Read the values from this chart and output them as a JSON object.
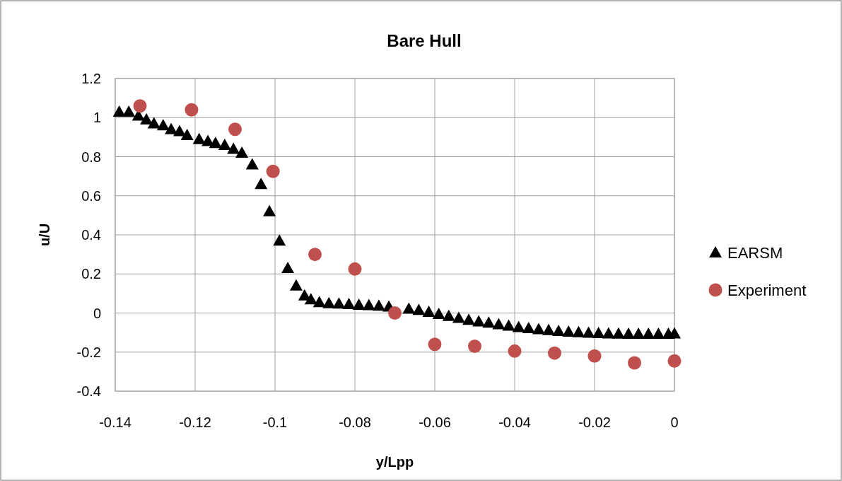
{
  "chart_data": {
    "type": "scatter",
    "title": "Bare Hull",
    "xlabel": "y/Lpp",
    "ylabel": "u/U",
    "xlim": [
      -0.14,
      0
    ],
    "xticks": [
      -0.14,
      -0.12,
      -0.1,
      -0.08,
      -0.06,
      -0.04,
      -0.02,
      0
    ],
    "ylim": [
      -0.4,
      1.2
    ],
    "yticks": [
      -0.4,
      -0.2,
      0,
      0.2,
      0.4,
      0.6,
      0.8,
      1,
      1.2
    ],
    "grid": true,
    "legend": "right",
    "series": [
      {
        "name": "EARSM",
        "color": "#000000",
        "marker": "triangle",
        "x": [
          -0.139,
          -0.1366,
          -0.1342,
          -0.1322,
          -0.1303,
          -0.128,
          -0.126,
          -0.1239,
          -0.122,
          -0.119,
          -0.1168,
          -0.1149,
          -0.1126,
          -0.1104,
          -0.1083,
          -0.1057,
          -0.1035,
          -0.1014,
          -0.0989,
          -0.0968,
          -0.0947,
          -0.0926,
          -0.091,
          -0.0889,
          -0.0865,
          -0.084,
          -0.0815,
          -0.079,
          -0.0765,
          -0.074,
          -0.0715,
          -0.0665,
          -0.064,
          -0.0615,
          -0.059,
          -0.0565,
          -0.054,
          -0.0515,
          -0.049,
          -0.0465,
          -0.044,
          -0.0415,
          -0.039,
          -0.0365,
          -0.034,
          -0.0315,
          -0.029,
          -0.0265,
          -0.024,
          -0.0215,
          -0.019,
          -0.0165,
          -0.014,
          -0.0115,
          -0.009,
          -0.0065,
          -0.004,
          -0.0015,
          0
        ],
        "values": [
          1.03,
          1.03,
          1.01,
          0.99,
          0.97,
          0.96,
          0.94,
          0.93,
          0.91,
          0.89,
          0.88,
          0.87,
          0.86,
          0.84,
          0.82,
          0.76,
          0.66,
          0.52,
          0.37,
          0.23,
          0.14,
          0.09,
          0.07,
          0.055,
          0.05,
          0.048,
          0.045,
          0.042,
          0.04,
          0.037,
          0.033,
          0.022,
          0.015,
          0.005,
          -0.005,
          -0.015,
          -0.025,
          -0.035,
          -0.043,
          -0.05,
          -0.058,
          -0.065,
          -0.072,
          -0.078,
          -0.083,
          -0.088,
          -0.092,
          -0.096,
          -0.099,
          -0.101,
          -0.103,
          -0.105,
          -0.106,
          -0.107,
          -0.107,
          -0.107,
          -0.107,
          -0.107,
          -0.105
        ]
      },
      {
        "name": "Experiment",
        "color": "#c0504d",
        "marker": "circle",
        "x": [
          -0.1338,
          -0.1209,
          -0.11,
          -0.1005,
          -0.09,
          -0.08,
          -0.07,
          -0.06,
          -0.05,
          -0.04,
          -0.03,
          -0.02,
          -0.01,
          0
        ],
        "values": [
          1.06,
          1.04,
          0.94,
          0.725,
          0.3,
          0.225,
          0,
          -0.16,
          -0.17,
          -0.195,
          -0.205,
          -0.22,
          -0.255,
          -0.245
        ]
      }
    ]
  }
}
